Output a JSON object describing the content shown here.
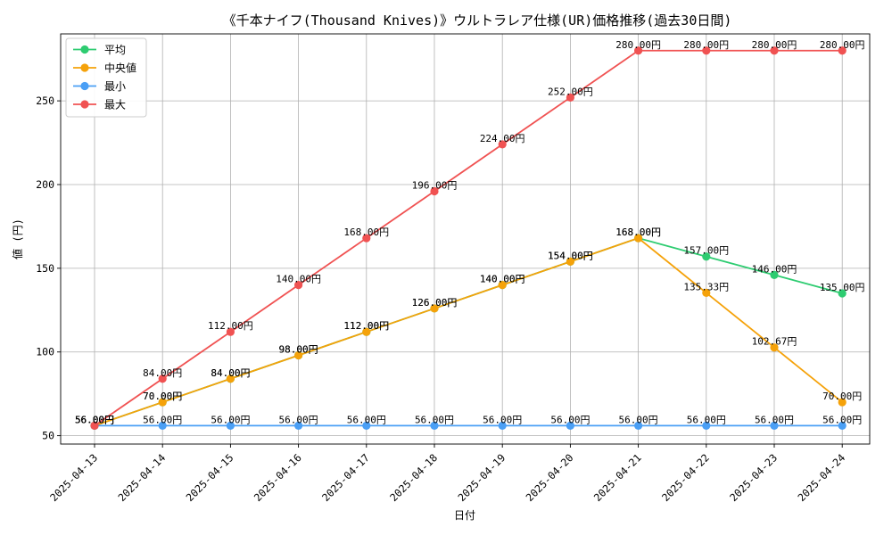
{
  "chart_data": {
    "type": "line",
    "title": "《千本ナイフ(Thousand Knives)》ウルトラレア仕様(UR)価格推移(過去30日間)",
    "xlabel": "日付",
    "ylabel": "値 (円)",
    "x": [
      "2025-04-13",
      "2025-04-14",
      "2025-04-15",
      "2025-04-16",
      "2025-04-17",
      "2025-04-18",
      "2025-04-19",
      "2025-04-20",
      "2025-04-21",
      "2025-04-22",
      "2025-04-23",
      "2025-04-24"
    ],
    "ylim": [
      45,
      290
    ],
    "yticks": [
      50,
      100,
      150,
      200,
      250
    ],
    "grid": true,
    "legend_position": "top-left",
    "series": [
      {
        "name": "平均",
        "color": "#2ecc71",
        "values": [
          56,
          70,
          84,
          98,
          112,
          126,
          140,
          154,
          168,
          157,
          146,
          135
        ],
        "labels": [
          "56.00円",
          "70.00円",
          "84.00円",
          "98.00円",
          "112.00円",
          "126.00円",
          "140.00円",
          "154.00円",
          "168.00円",
          "157.00円",
          "146.00円",
          "135.00円"
        ]
      },
      {
        "name": "中央値",
        "color": "#f5a20a",
        "values": [
          56,
          70,
          84,
          98,
          112,
          126,
          140,
          154,
          168,
          135.33,
          102.67,
          70
        ],
        "labels": [
          "56.00円",
          "70.00円",
          "84.00円",
          "98.00円",
          "112.00円",
          "126.00円",
          "140.00円",
          "154.00円",
          "168.00円",
          "135.33円",
          "102.67円",
          "70.00円"
        ]
      },
      {
        "name": "最小",
        "color": "#4a9ff5",
        "values": [
          56,
          56,
          56,
          56,
          56,
          56,
          56,
          56,
          56,
          56,
          56,
          56
        ],
        "labels": [
          "56.00円",
          "56.00円",
          "56.00円",
          "56.00円",
          "56.00円",
          "56.00円",
          "56.00円",
          "56.00円",
          "56.00円",
          "56.00円",
          "56.00円",
          "56.00円"
        ]
      },
      {
        "name": "最大",
        "color": "#f05252",
        "values": [
          56,
          84,
          112,
          140,
          168,
          196,
          224,
          252,
          280,
          280,
          280,
          280
        ],
        "labels": [
          "56.00円",
          "84.00円",
          "112.00円",
          "140.00円",
          "168.00円",
          "196.00円",
          "224.00円",
          "252.00円",
          "280.00円",
          "280.00円",
          "280.00円",
          "280.00円"
        ]
      }
    ]
  }
}
